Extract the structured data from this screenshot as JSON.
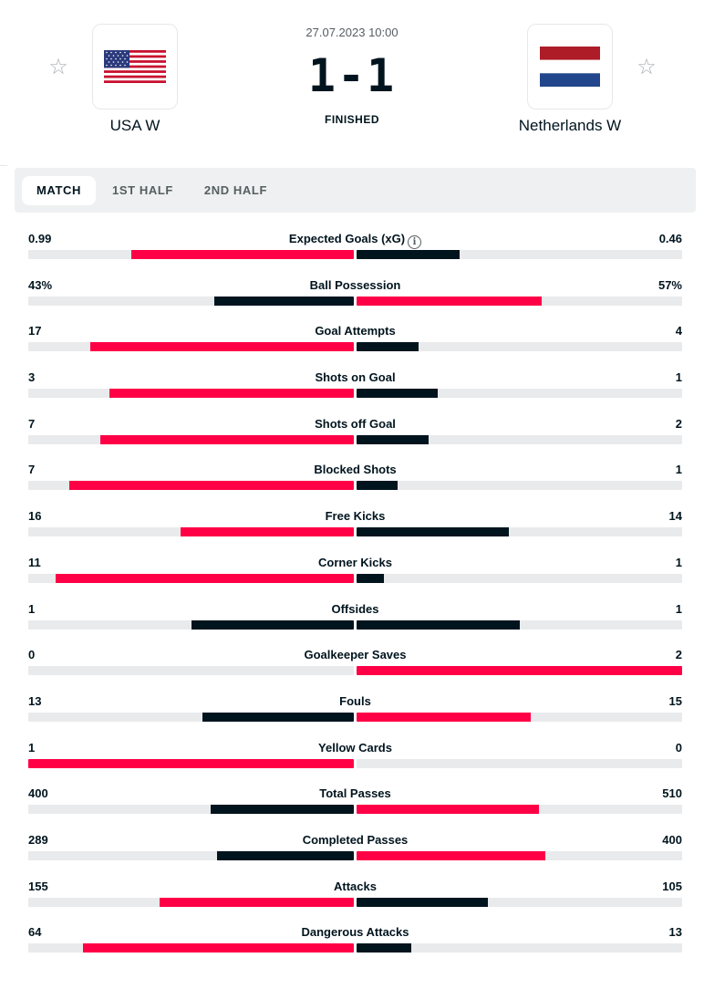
{
  "match": {
    "datetime": "27.07.2023 10:00",
    "score": "1-1",
    "status": "FINISHED",
    "home": {
      "name": "USA W",
      "flag": "usa-flag"
    },
    "away": {
      "name": "Netherlands W",
      "flag": "netherlands-flag"
    }
  },
  "tabs": [
    {
      "label": "MATCH",
      "active": true
    },
    {
      "label": "1ST HALF",
      "active": false
    },
    {
      "label": "2ND HALF",
      "active": false
    }
  ],
  "colors": {
    "accent": "#ff0046",
    "dark": "#00141e",
    "track": "#e8eaec"
  },
  "stats": [
    {
      "name": "Expected Goals (xG)",
      "home": "0.99",
      "away": "0.46",
      "h": 0.99,
      "a": 0.46,
      "info": true
    },
    {
      "name": "Ball Possession",
      "home": "43%",
      "away": "57%",
      "h": 43,
      "a": 57
    },
    {
      "name": "Goal Attempts",
      "home": "17",
      "away": "4",
      "h": 17,
      "a": 4
    },
    {
      "name": "Shots on Goal",
      "home": "3",
      "away": "1",
      "h": 3,
      "a": 1
    },
    {
      "name": "Shots off Goal",
      "home": "7",
      "away": "2",
      "h": 7,
      "a": 2
    },
    {
      "name": "Blocked Shots",
      "home": "7",
      "away": "1",
      "h": 7,
      "a": 1
    },
    {
      "name": "Free Kicks",
      "home": "16",
      "away": "14",
      "h": 16,
      "a": 14
    },
    {
      "name": "Corner Kicks",
      "home": "11",
      "away": "1",
      "h": 11,
      "a": 1
    },
    {
      "name": "Offsides",
      "home": "1",
      "away": "1",
      "h": 1,
      "a": 1
    },
    {
      "name": "Goalkeeper Saves",
      "home": "0",
      "away": "2",
      "h": 0,
      "a": 2
    },
    {
      "name": "Fouls",
      "home": "13",
      "away": "15",
      "h": 13,
      "a": 15
    },
    {
      "name": "Yellow Cards",
      "home": "1",
      "away": "0",
      "h": 1,
      "a": 0
    },
    {
      "name": "Total Passes",
      "home": "400",
      "away": "510",
      "h": 400,
      "a": 510
    },
    {
      "name": "Completed Passes",
      "home": "289",
      "away": "400",
      "h": 289,
      "a": 400
    },
    {
      "name": "Attacks",
      "home": "155",
      "away": "105",
      "h": 155,
      "a": 105
    },
    {
      "name": "Dangerous Attacks",
      "home": "64",
      "away": "13",
      "h": 64,
      "a": 13
    }
  ]
}
